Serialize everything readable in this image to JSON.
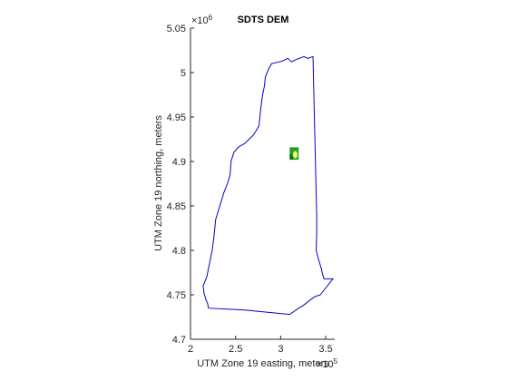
{
  "colors": {
    "boundary": "#0000cc",
    "axis": "#262626",
    "dem_green": "#22a022",
    "dem_dark": "#117a11",
    "dem_yellow": "#e6e65a",
    "dem_white": "#f4f4d2"
  },
  "chart_data": {
    "type": "map",
    "title": "SDTS DEM",
    "xlabel": "UTM Zone 19 easting, meters",
    "ylabel": "UTM Zone 19 northing, meters",
    "x_exponent_label": "×10",
    "x_exponent_power": "5",
    "y_exponent_label": "×10",
    "y_exponent_power": "6",
    "xlim": [
      2.0,
      3.6
    ],
    "ylim": [
      4.7,
      5.05
    ],
    "xticks": [
      2.0,
      2.5,
      3.0,
      3.5
    ],
    "xtick_labels": [
      "2",
      "2.5",
      "3",
      "3.5"
    ],
    "yticks": [
      4.7,
      4.75,
      4.8,
      4.85,
      4.9,
      4.95,
      5.0,
      5.05
    ],
    "ytick_labels": [
      "4.7",
      "4.75",
      "4.8",
      "4.85",
      "4.9",
      "4.95",
      "5",
      "5.05"
    ],
    "state_boundary": [
      [
        3.36,
        5.018
      ],
      [
        3.36,
        5.015
      ],
      [
        3.37,
        4.97
      ],
      [
        3.4,
        4.84
      ],
      [
        3.4,
        4.82
      ],
      [
        3.395,
        4.8
      ],
      [
        3.42,
        4.79
      ],
      [
        3.45,
        4.78
      ],
      [
        3.46,
        4.775
      ],
      [
        3.48,
        4.768
      ],
      [
        3.58,
        4.768
      ],
      [
        3.44,
        4.75
      ],
      [
        3.38,
        4.748
      ],
      [
        3.3,
        4.742
      ],
      [
        3.25,
        4.738
      ],
      [
        3.2,
        4.735
      ],
      [
        3.1,
        4.728
      ],
      [
        2.6,
        4.733
      ],
      [
        2.2,
        4.735
      ],
      [
        2.19,
        4.74
      ],
      [
        2.17,
        4.745
      ],
      [
        2.15,
        4.752
      ],
      [
        2.14,
        4.76
      ],
      [
        2.16,
        4.765
      ],
      [
        2.18,
        4.77
      ],
      [
        2.21,
        4.785
      ],
      [
        2.24,
        4.8
      ],
      [
        2.26,
        4.815
      ],
      [
        2.28,
        4.835
      ],
      [
        2.31,
        4.845
      ],
      [
        2.34,
        4.855
      ],
      [
        2.37,
        4.865
      ],
      [
        2.41,
        4.875
      ],
      [
        2.44,
        4.885
      ],
      [
        2.45,
        4.9
      ],
      [
        2.48,
        4.91
      ],
      [
        2.52,
        4.915
      ],
      [
        2.56,
        4.918
      ],
      [
        2.6,
        4.92
      ],
      [
        2.65,
        4.925
      ],
      [
        2.7,
        4.93
      ],
      [
        2.73,
        4.935
      ],
      [
        2.76,
        4.94
      ],
      [
        2.78,
        4.96
      ],
      [
        2.8,
        4.975
      ],
      [
        2.82,
        4.985
      ],
      [
        2.83,
        4.995
      ],
      [
        2.87,
        5.005
      ],
      [
        2.9,
        5.01
      ],
      [
        3.02,
        5.013
      ],
      [
        3.08,
        5.016
      ],
      [
        3.12,
        5.012
      ],
      [
        3.18,
        5.015
      ],
      [
        3.26,
        5.018
      ],
      [
        3.3,
        5.016
      ],
      [
        3.36,
        5.018
      ]
    ],
    "dem_tile": {
      "xmin": 3.1,
      "xmax": 3.2,
      "ymin": 4.902,
      "ymax": 4.916
    }
  }
}
